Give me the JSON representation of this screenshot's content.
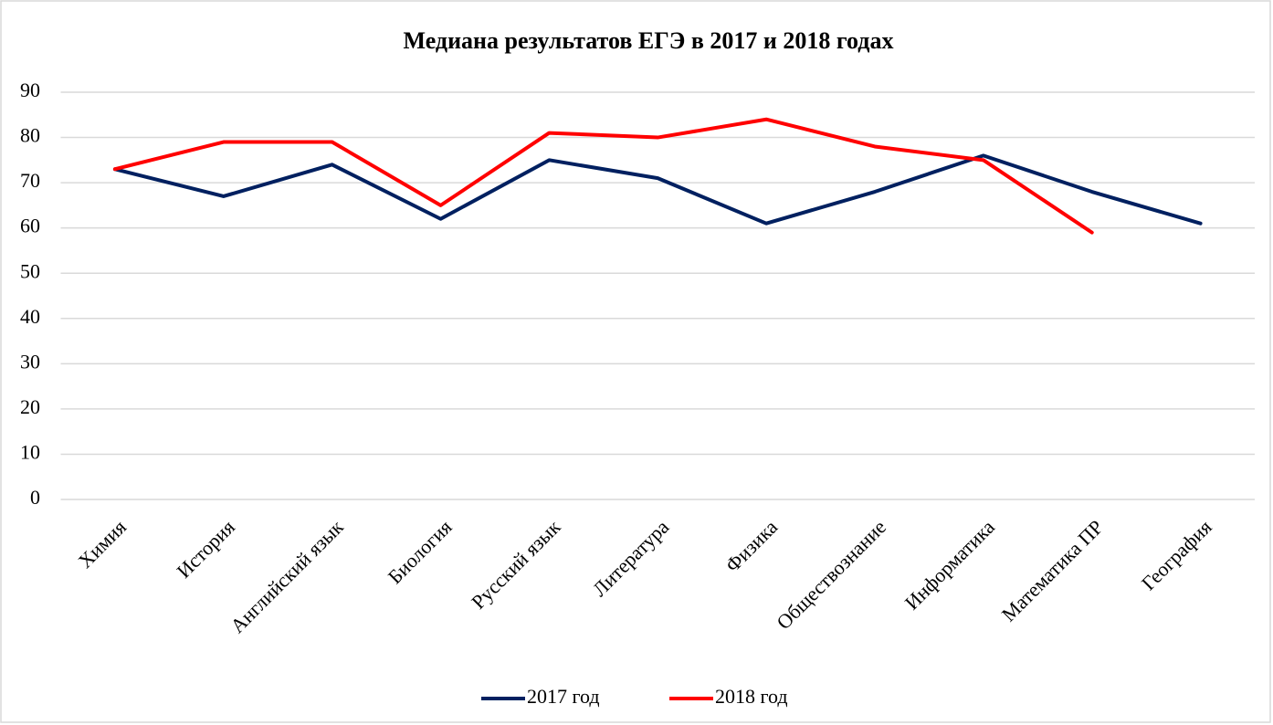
{
  "chart_data": {
    "type": "line",
    "title": "Медиана результатов ЕГЭ в 2017 и 2018 годах",
    "categories": [
      "Химия",
      "История",
      "Английский язык",
      "Биология",
      "Русский язык",
      "Литература",
      "Физика",
      "Обществознание",
      "Информатика",
      "Математика ПР",
      "География"
    ],
    "series": [
      {
        "name": "2017 год",
        "color": "#002060",
        "values": [
          73,
          67,
          74,
          62,
          75,
          71,
          61,
          68,
          76,
          68,
          61
        ]
      },
      {
        "name": "2018 год",
        "color": "#ff0000",
        "values": [
          73,
          79,
          79,
          65,
          81,
          80,
          84,
          78,
          75,
          59,
          null
        ]
      }
    ],
    "ylim": [
      0,
      90
    ],
    "yticks": [
      0,
      10,
      20,
      30,
      40,
      50,
      60,
      70,
      80,
      90
    ],
    "grid": true,
    "legend": "bottom"
  }
}
